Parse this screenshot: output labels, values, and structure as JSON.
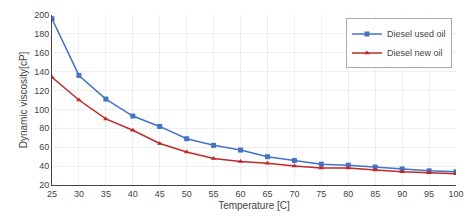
{
  "chart_data": {
    "type": "line",
    "x": [
      25,
      30,
      35,
      40,
      45,
      50,
      55,
      60,
      65,
      70,
      75,
      80,
      85,
      90,
      95,
      100
    ],
    "series": [
      {
        "name": "Diesel used oil",
        "color": "#4472C4",
        "marker": "square",
        "values": [
          196,
          136,
          111,
          93,
          82,
          69,
          62,
          57,
          50,
          46,
          42,
          41,
          39,
          37,
          35,
          34
        ]
      },
      {
        "name": "Diesel new oil",
        "color": "#C0292A",
        "marker": "triangle-up",
        "values": [
          134,
          110,
          90,
          78,
          64,
          55,
          48,
          45,
          43,
          40,
          38,
          38,
          36,
          34,
          33,
          32
        ]
      }
    ],
    "xlabel": "Temperature [C]",
    "ylabel": "Dynamic viscosity[cP]",
    "xlim": [
      25,
      100
    ],
    "ylim": [
      20,
      200
    ],
    "xticks": [
      25,
      30,
      35,
      40,
      45,
      50,
      55,
      60,
      65,
      70,
      75,
      80,
      85,
      90,
      95,
      100
    ],
    "yticks": [
      20,
      40,
      60,
      80,
      100,
      120,
      140,
      160,
      180,
      200
    ],
    "grid": true,
    "legend": "upper right"
  }
}
